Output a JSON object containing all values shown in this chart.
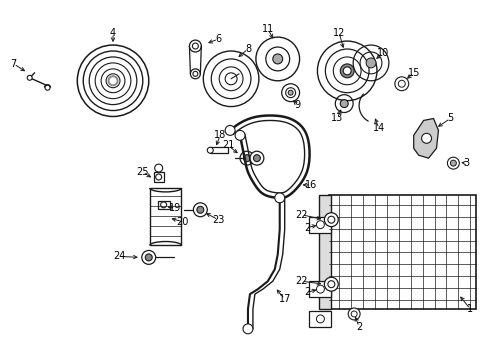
{
  "bg_color": "#ffffff",
  "line_color": "#1a1a1a",
  "label_color": "#000000",
  "fig_width": 4.89,
  "fig_height": 3.6,
  "dpi": 100,
  "fs": 7.0
}
